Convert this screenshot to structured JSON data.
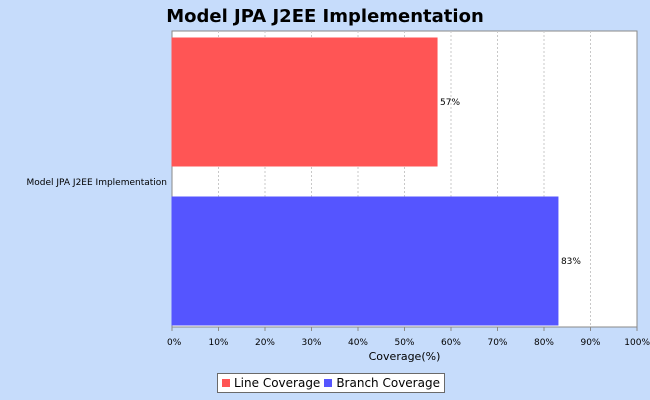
{
  "chart_data": {
    "type": "bar",
    "orientation": "horizontal",
    "title": "Model JPA J2EE Implementation",
    "xlabel": "Coverage(%)",
    "ylabel": "",
    "categories": [
      "Model JPA J2EE Implementation"
    ],
    "series": [
      {
        "name": "Line Coverage",
        "values": [
          57
        ],
        "color": "#ff5555",
        "label": "57%"
      },
      {
        "name": "Branch Coverage",
        "values": [
          83
        ],
        "color": "#5555ff",
        "label": "83%"
      }
    ],
    "xlim": [
      0,
      100
    ],
    "x_ticks": [
      0,
      10,
      20,
      30,
      40,
      50,
      60,
      70,
      80,
      90,
      100
    ],
    "x_tick_labels": [
      "0%",
      "10%",
      "20%",
      "30%",
      "40%",
      "50%",
      "60%",
      "70%",
      "80%",
      "90%",
      "100%"
    ],
    "grid": true,
    "legend_position": "bottom",
    "background_color": "#c6dcfb",
    "plot_background": "#ffffff"
  }
}
